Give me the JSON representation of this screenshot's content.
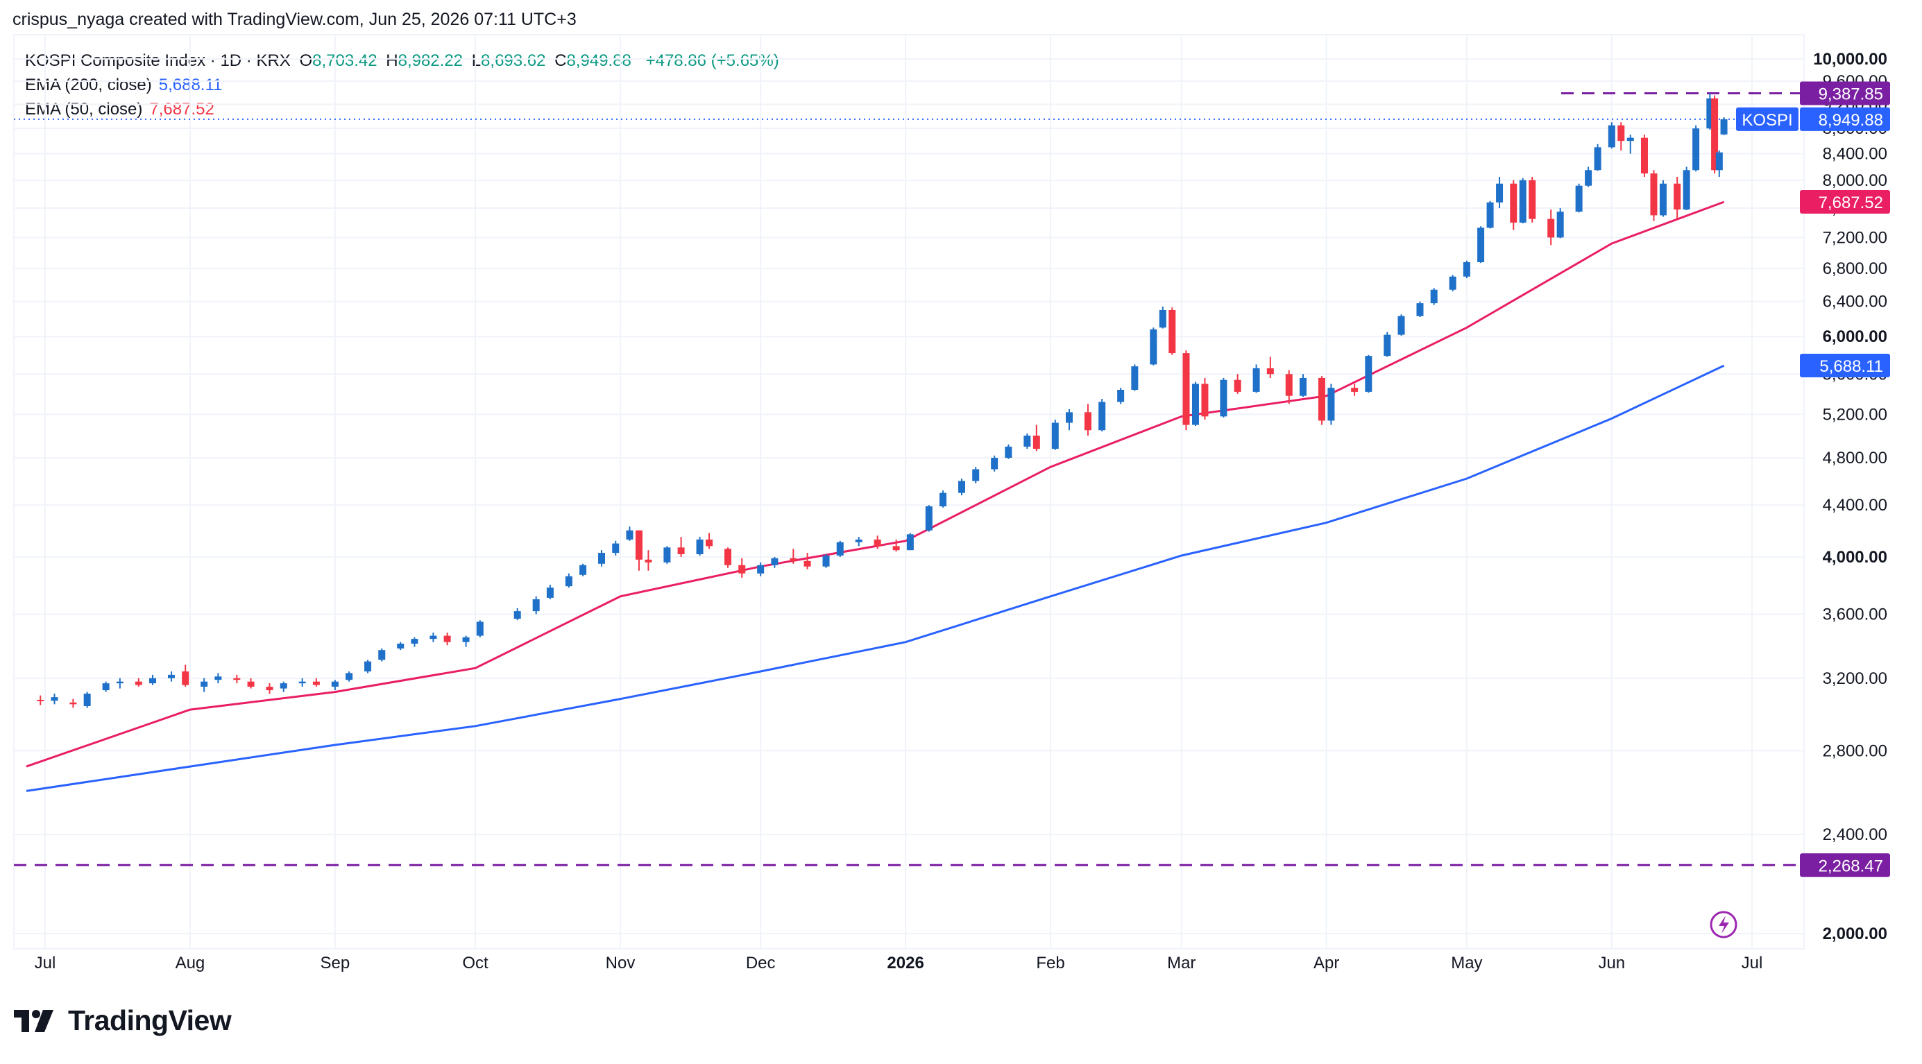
{
  "header": {
    "credit": "crispus_nyaga created with TradingView.com, Jun 25, 2026 07:11 UTC+3"
  },
  "legend": {
    "title": "KOSPI Composite Index · 1D · KRX",
    "open_label": "O",
    "open": "8,703.42",
    "high_label": "H",
    "high": "8,982.22",
    "low_label": "L",
    "low": "8,693.62",
    "close_label": "C",
    "close": "8,949.88",
    "change": "+478.86 (+5.65%)",
    "ema200_label": "EMA (200, close)",
    "ema200_value": "5,688.11",
    "ema50_label": "EMA (50, close)",
    "ema50_value": "7,687.52"
  },
  "colors": {
    "up": "#1e70c8",
    "down": "#f23645",
    "ema200": "#2962ff",
    "ema50": "#e91e63",
    "level_line": "#7b1fa2",
    "last_price_line": "#2962ff",
    "grid": "#f0f3fa"
  },
  "price_axis": {
    "ticks": [
      "10,000.00",
      "9,600.00",
      "9,200.00",
      "8,800.00",
      "8,400.00",
      "8,000.00",
      "7,600.00",
      "7,200.00",
      "6,800.00",
      "6,400.00",
      "6,000.00",
      "5,600.00",
      "5,200.00",
      "4,800.00",
      "4,400.00",
      "4,000.00",
      "3,600.00",
      "3,200.00",
      "2,800.00",
      "2,400.00",
      "2,000.00"
    ],
    "bold_ticks": [
      "10,000.00",
      "6,000.00",
      "4,000.00",
      "2,000.00"
    ]
  },
  "time_axis": {
    "labels": [
      "Jul",
      "Aug",
      "Sep",
      "Oct",
      "Nov",
      "Dec",
      "2026",
      "Feb",
      "Mar",
      "Apr",
      "May",
      "Jun",
      "Jul"
    ],
    "bold_labels": [
      "2026"
    ]
  },
  "tags": {
    "high_level": "9,387.85",
    "low_level": "2,268.47",
    "symbol": "KOSPI",
    "last_price": "8,949.88",
    "ema50": "7,687.52",
    "ema200": "5,688.11"
  },
  "branding": {
    "logo_text": "TradingView"
  },
  "chart_data": {
    "type": "candlestick",
    "title": "KOSPI Composite Index · 1D · KRX",
    "x_range": [
      "2025-06-27",
      "2026-06-25"
    ],
    "ylim": [
      2000,
      10000
    ],
    "y_scale": "log",
    "grid": true,
    "levels": [
      {
        "value": 9387.85,
        "style": "dashed"
      },
      {
        "value": 2268.47,
        "style": "dashed"
      }
    ],
    "last_price": 8949.88,
    "candles": [
      [
        "2025-06-30",
        3075,
        3100,
        3045,
        3070
      ],
      [
        "2025-07-03",
        3070,
        3110,
        3050,
        3090
      ],
      [
        "2025-07-07",
        3060,
        3080,
        3030,
        3050
      ],
      [
        "2025-07-10",
        3040,
        3120,
        3030,
        3110
      ],
      [
        "2025-07-14",
        3130,
        3180,
        3120,
        3170
      ],
      [
        "2025-07-17",
        3170,
        3200,
        3140,
        3180
      ],
      [
        "2025-07-21",
        3180,
        3200,
        3150,
        3160
      ],
      [
        "2025-07-24",
        3170,
        3220,
        3160,
        3200
      ],
      [
        "2025-07-28",
        3200,
        3240,
        3180,
        3220
      ],
      [
        "2025-07-31",
        3240,
        3280,
        3150,
        3160
      ],
      [
        "2025-08-04",
        3150,
        3200,
        3120,
        3180
      ],
      [
        "2025-08-07",
        3190,
        3230,
        3170,
        3210
      ],
      [
        "2025-08-11",
        3200,
        3220,
        3170,
        3190
      ],
      [
        "2025-08-14",
        3180,
        3200,
        3140,
        3150
      ],
      [
        "2025-08-18",
        3150,
        3170,
        3110,
        3130
      ],
      [
        "2025-08-21",
        3140,
        3180,
        3120,
        3170
      ],
      [
        "2025-08-25",
        3170,
        3200,
        3150,
        3180
      ],
      [
        "2025-08-28",
        3180,
        3200,
        3150,
        3160
      ],
      [
        "2025-09-01",
        3150,
        3190,
        3130,
        3180
      ],
      [
        "2025-09-04",
        3190,
        3240,
        3180,
        3230
      ],
      [
        "2025-09-08",
        3240,
        3310,
        3230,
        3300
      ],
      [
        "2025-09-11",
        3310,
        3380,
        3300,
        3370
      ],
      [
        "2025-09-15",
        3380,
        3420,
        3370,
        3410
      ],
      [
        "2025-09-18",
        3410,
        3450,
        3390,
        3440
      ],
      [
        "2025-09-22",
        3440,
        3480,
        3420,
        3460
      ],
      [
        "2025-09-25",
        3460,
        3480,
        3400,
        3420
      ],
      [
        "2025-09-29",
        3420,
        3460,
        3390,
        3450
      ],
      [
        "2025-10-02",
        3460,
        3560,
        3450,
        3550
      ],
      [
        "2025-10-10",
        3570,
        3640,
        3560,
        3620
      ],
      [
        "2025-10-14",
        3620,
        3720,
        3600,
        3700
      ],
      [
        "2025-10-17",
        3710,
        3800,
        3700,
        3780
      ],
      [
        "2025-10-21",
        3790,
        3880,
        3780,
        3860
      ],
      [
        "2025-10-24",
        3870,
        3950,
        3860,
        3940
      ],
      [
        "2025-10-28",
        3950,
        4050,
        3930,
        4030
      ],
      [
        "2025-10-31",
        4030,
        4120,
        4010,
        4100
      ],
      [
        "2025-11-03",
        4130,
        4230,
        4120,
        4200
      ],
      [
        "2025-11-05",
        4200,
        4200,
        3900,
        3980
      ],
      [
        "2025-11-07",
        3980,
        4050,
        3900,
        3960
      ],
      [
        "2025-11-11",
        3960,
        4080,
        3950,
        4070
      ],
      [
        "2025-11-14",
        4070,
        4150,
        4000,
        4020
      ],
      [
        "2025-11-18",
        4020,
        4150,
        4010,
        4130
      ],
      [
        "2025-11-20",
        4130,
        4180,
        4060,
        4080
      ],
      [
        "2025-11-24",
        4060,
        4070,
        3920,
        3940
      ],
      [
        "2025-11-27",
        3940,
        3990,
        3850,
        3880
      ],
      [
        "2025-12-01",
        3880,
        3960,
        3860,
        3940
      ],
      [
        "2025-12-04",
        3940,
        4000,
        3920,
        3990
      ],
      [
        "2025-12-08",
        3990,
        4060,
        3950,
        3970
      ],
      [
        "2025-12-11",
        3970,
        4030,
        3910,
        3930
      ],
      [
        "2025-12-15",
        3930,
        4020,
        3920,
        4010
      ],
      [
        "2025-12-18",
        4010,
        4120,
        4000,
        4110
      ],
      [
        "2025-12-22",
        4110,
        4150,
        4080,
        4130
      ],
      [
        "2025-12-26",
        4130,
        4160,
        4060,
        4080
      ],
      [
        "2025-12-30",
        4080,
        4130,
        4040,
        4050
      ],
      [
        "2026-01-02",
        4050,
        4180,
        4050,
        4170
      ],
      [
        "2026-01-06",
        4200,
        4400,
        4190,
        4390
      ],
      [
        "2026-01-09",
        4390,
        4520,
        4380,
        4500
      ],
      [
        "2026-01-13",
        4500,
        4620,
        4480,
        4600
      ],
      [
        "2026-01-16",
        4600,
        4720,
        4580,
        4700
      ],
      [
        "2026-01-20",
        4700,
        4820,
        4680,
        4800
      ],
      [
        "2026-01-23",
        4800,
        4920,
        4790,
        4900
      ],
      [
        "2026-01-27",
        4900,
        5020,
        4880,
        5000
      ],
      [
        "2026-01-29",
        5000,
        5100,
        4860,
        4880
      ],
      [
        "2026-02-02",
        4880,
        5150,
        4870,
        5120
      ],
      [
        "2026-02-05",
        5120,
        5250,
        5050,
        5220
      ],
      [
        "2026-02-09",
        5220,
        5300,
        5000,
        5050
      ],
      [
        "2026-02-12",
        5050,
        5350,
        5040,
        5320
      ],
      [
        "2026-02-16",
        5320,
        5460,
        5300,
        5440
      ],
      [
        "2026-02-19",
        5440,
        5700,
        5430,
        5680
      ],
      [
        "2026-02-23",
        5700,
        6100,
        5690,
        6080
      ],
      [
        "2026-02-25",
        6100,
        6340,
        6090,
        6300
      ],
      [
        "2026-02-27",
        6300,
        6330,
        5800,
        5820
      ],
      [
        "2026-03-02",
        5820,
        5850,
        5050,
        5100
      ],
      [
        "2026-03-04",
        5100,
        5520,
        5090,
        5500
      ],
      [
        "2026-03-06",
        5500,
        5560,
        5150,
        5180
      ],
      [
        "2026-03-10",
        5180,
        5560,
        5170,
        5540
      ],
      [
        "2026-03-13",
        5540,
        5600,
        5400,
        5420
      ],
      [
        "2026-03-17",
        5420,
        5700,
        5410,
        5660
      ],
      [
        "2026-03-20",
        5660,
        5780,
        5560,
        5600
      ],
      [
        "2026-03-24",
        5600,
        5640,
        5300,
        5380
      ],
      [
        "2026-03-27",
        5380,
        5600,
        5370,
        5560
      ],
      [
        "2026-03-31",
        5560,
        5580,
        5100,
        5140
      ],
      [
        "2026-04-02",
        5140,
        5500,
        5100,
        5460
      ],
      [
        "2026-04-07",
        5460,
        5500,
        5380,
        5420
      ],
      [
        "2026-04-10",
        5420,
        5800,
        5410,
        5790
      ],
      [
        "2026-04-14",
        5790,
        6050,
        5780,
        6020
      ],
      [
        "2026-04-17",
        6020,
        6250,
        6010,
        6230
      ],
      [
        "2026-04-21",
        6230,
        6400,
        6220,
        6380
      ],
      [
        "2026-04-24",
        6380,
        6560,
        6360,
        6540
      ],
      [
        "2026-04-28",
        6540,
        6720,
        6520,
        6700
      ],
      [
        "2026-05-01",
        6700,
        6900,
        6680,
        6880
      ],
      [
        "2026-05-04",
        6880,
        7350,
        6870,
        7330
      ],
      [
        "2026-05-06",
        7330,
        7700,
        7320,
        7680
      ],
      [
        "2026-05-08",
        7680,
        8050,
        7600,
        7950
      ],
      [
        "2026-05-11",
        7950,
        8000,
        7300,
        7400
      ],
      [
        "2026-05-13",
        7400,
        8030,
        7390,
        8000
      ],
      [
        "2026-05-15",
        8000,
        8050,
        7400,
        7450
      ],
      [
        "2026-05-19",
        7450,
        7580,
        7100,
        7200
      ],
      [
        "2026-05-21",
        7200,
        7600,
        7190,
        7550
      ],
      [
        "2026-05-25",
        7550,
        7950,
        7540,
        7920
      ],
      [
        "2026-05-27",
        7920,
        8200,
        7900,
        8150
      ],
      [
        "2026-05-29",
        8150,
        8550,
        8140,
        8500
      ],
      [
        "2026-06-01",
        8500,
        8900,
        8480,
        8850
      ],
      [
        "2026-06-03",
        8850,
        8900,
        8450,
        8600
      ],
      [
        "2026-06-05",
        8600,
        8700,
        8400,
        8650
      ],
      [
        "2026-06-08",
        8650,
        8700,
        8050,
        8100
      ],
      [
        "2026-06-10",
        8100,
        8150,
        7420,
        7500
      ],
      [
        "2026-06-12",
        7500,
        8000,
        7480,
        7950
      ],
      [
        "2026-06-15",
        7950,
        8050,
        7450,
        7580
      ],
      [
        "2026-06-17",
        7580,
        8200,
        7570,
        8150
      ],
      [
        "2026-06-19",
        8150,
        8850,
        8130,
        8800
      ],
      [
        "2026-06-22",
        8800,
        9388,
        8780,
        9300
      ],
      [
        "2026-06-23",
        9300,
        9350,
        8100,
        8150
      ],
      [
        "2026-06-24",
        8150,
        8450,
        8050,
        8420
      ],
      [
        "2026-06-25",
        8703.42,
        8982.22,
        8693.62,
        8949.88
      ]
    ],
    "ema200": [
      [
        "2025-06-27",
        2600
      ],
      [
        "2025-08-01",
        2720
      ],
      [
        "2025-09-01",
        2830
      ],
      [
        "2025-10-01",
        2930
      ],
      [
        "2025-11-01",
        3080
      ],
      [
        "2025-12-01",
        3240
      ],
      [
        "2026-01-01",
        3420
      ],
      [
        "2026-02-01",
        3720
      ],
      [
        "2026-03-01",
        4010
      ],
      [
        "2026-04-01",
        4260
      ],
      [
        "2026-05-01",
        4620
      ],
      [
        "2026-06-01",
        5160
      ],
      [
        "2026-06-25",
        5688.11
      ]
    ],
    "ema50": [
      [
        "2025-06-27",
        2720
      ],
      [
        "2025-08-01",
        3020
      ],
      [
        "2025-09-01",
        3120
      ],
      [
        "2025-10-01",
        3260
      ],
      [
        "2025-11-01",
        3720
      ],
      [
        "2025-12-01",
        3930
      ],
      [
        "2026-01-01",
        4120
      ],
      [
        "2026-02-01",
        4720
      ],
      [
        "2026-03-01",
        5180
      ],
      [
        "2026-04-01",
        5380
      ],
      [
        "2026-05-01",
        6100
      ],
      [
        "2026-06-01",
        7120
      ],
      [
        "2026-06-25",
        7687.52
      ]
    ]
  }
}
